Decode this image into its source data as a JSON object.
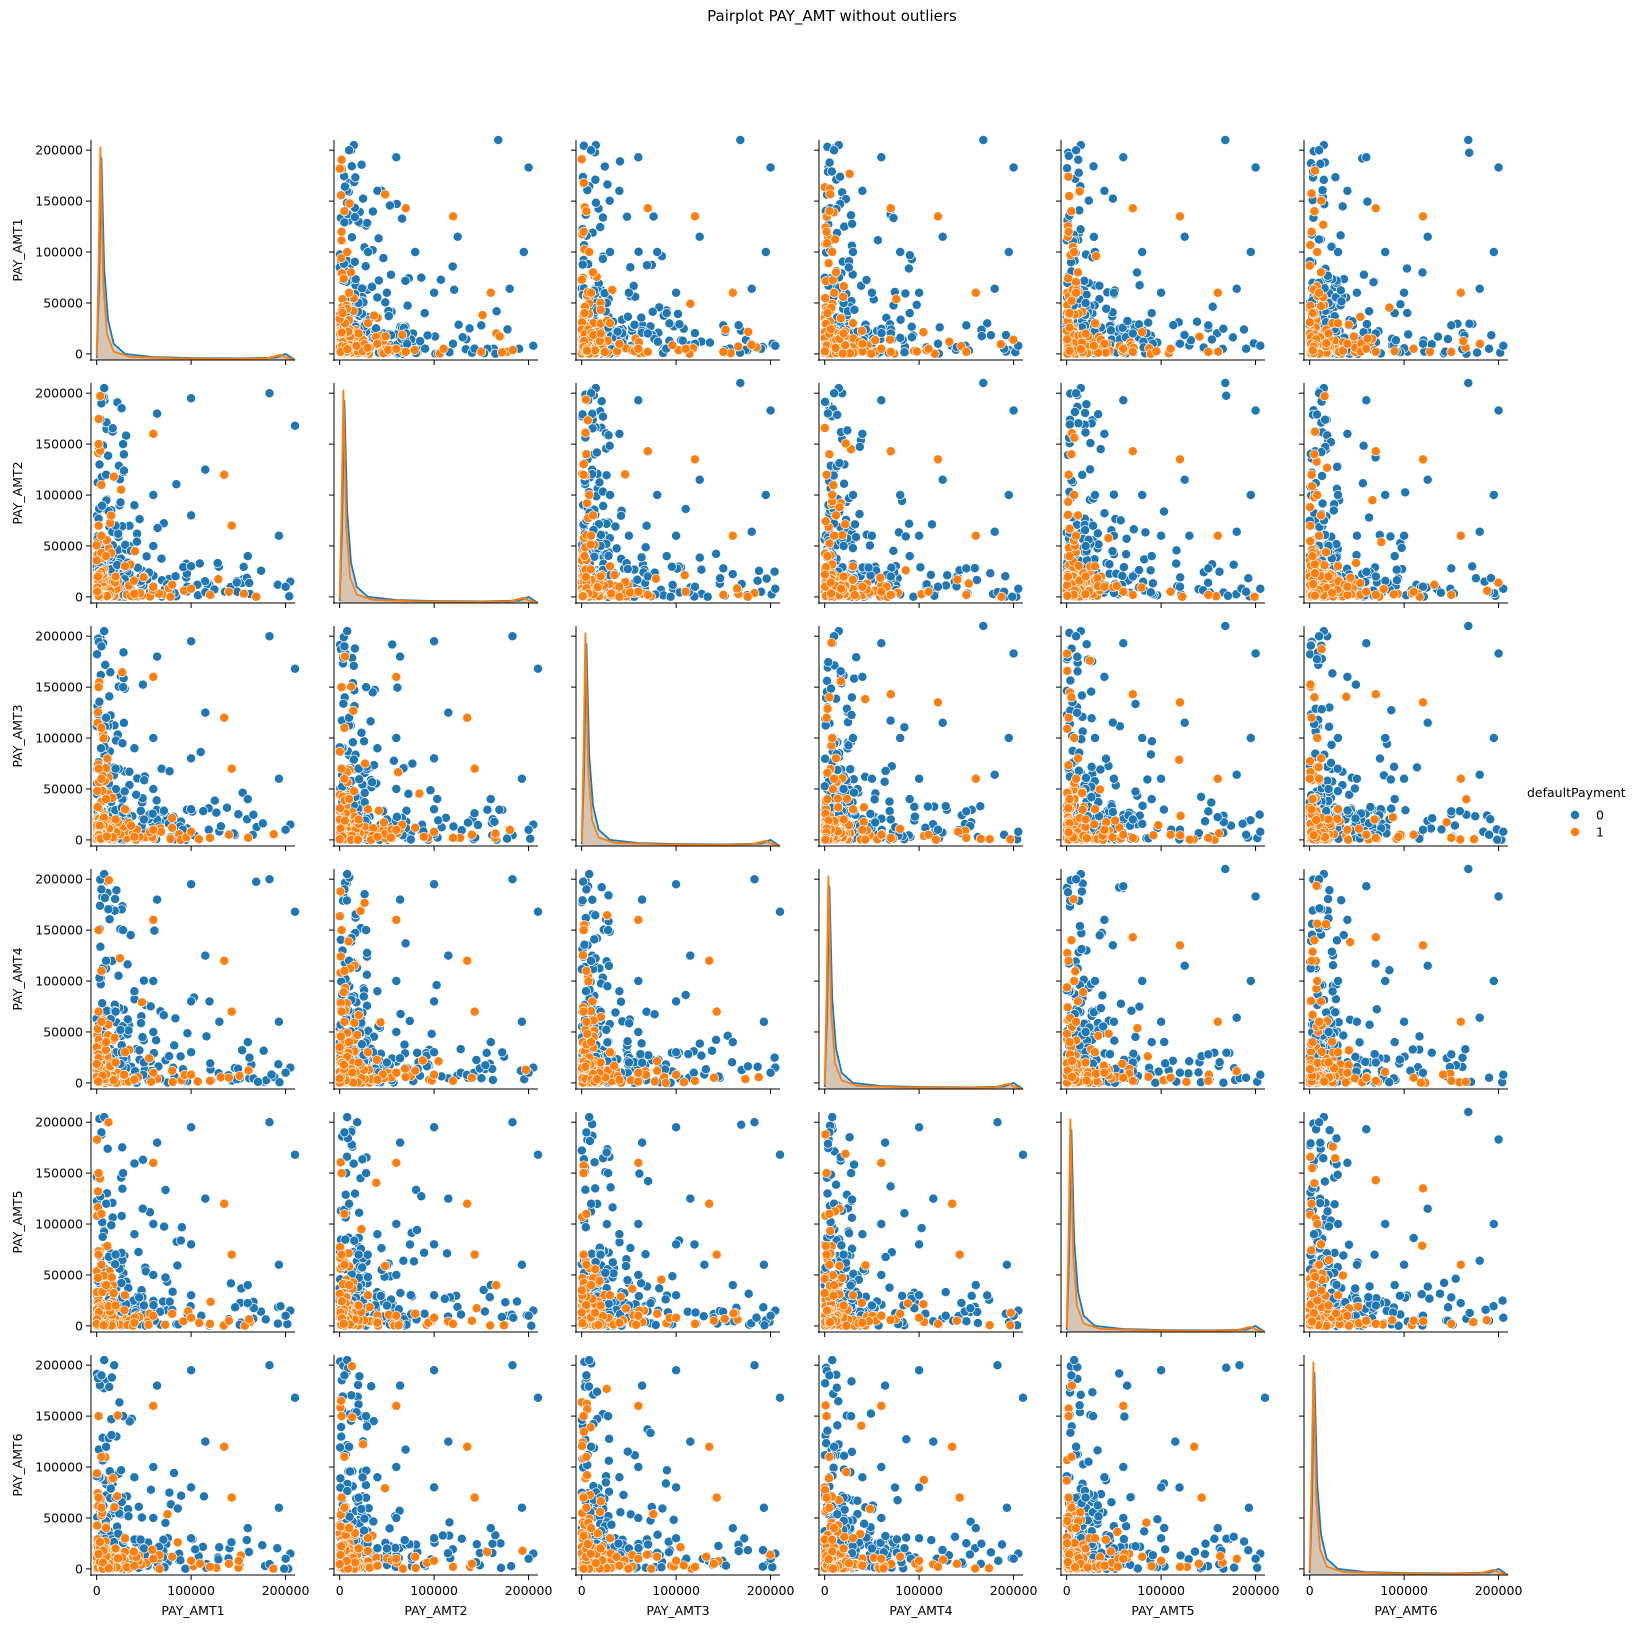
{
  "chart_data": {
    "type": "scatter",
    "title": "Pairplot PAY_AMT without outliers",
    "variables": [
      "PAY_AMT1",
      "PAY_AMT2",
      "PAY_AMT3",
      "PAY_AMT4",
      "PAY_AMT5",
      "PAY_AMT6"
    ],
    "axis_range": [
      -6000,
      210000
    ],
    "x_ticks": [
      0,
      100000,
      200000
    ],
    "y_ticks": [
      0,
      50000,
      100000,
      150000,
      200000
    ],
    "x_tick_labels": [
      "0",
      "100000",
      "200000"
    ],
    "y_tick_labels": [
      "0",
      "50000",
      "100000",
      "150000",
      "200000"
    ],
    "diagonal": "kde",
    "off_diagonal": "scatter",
    "hue": "defaultPayment",
    "legend": {
      "title": "defaultPayment",
      "placement": "right-center",
      "entries": [
        {
          "label": "0",
          "color": "#1f77b4"
        },
        {
          "label": "1",
          "color": "#ff7f0e"
        }
      ]
    },
    "kde_peaks": {
      "class_0": [
        [
          0,
          0.01
        ],
        [
          2500,
          0.35
        ],
        [
          5000,
          1.0
        ],
        [
          8000,
          0.45
        ],
        [
          12000,
          0.2
        ],
        [
          18000,
          0.08
        ],
        [
          30000,
          0.03
        ],
        [
          60000,
          0.015
        ],
        [
          100000,
          0.01
        ],
        [
          150000,
          0.008
        ],
        [
          190000,
          0.012
        ],
        [
          200000,
          0.03
        ],
        [
          205000,
          0.015
        ],
        [
          210000,
          0.0
        ]
      ],
      "class_1": [
        [
          0,
          0.02
        ],
        [
          2000,
          0.45
        ],
        [
          4000,
          1.0
        ],
        [
          7000,
          0.35
        ],
        [
          11000,
          0.12
        ],
        [
          18000,
          0.04
        ],
        [
          35000,
          0.015
        ],
        [
          80000,
          0.008
        ],
        [
          140000,
          0.005
        ],
        [
          180000,
          0.008
        ],
        [
          195000,
          0.025
        ],
        [
          200000,
          0.012
        ],
        [
          210000,
          0.0
        ]
      ]
    },
    "sample_points_class_0": [
      [
        168000,
        210000
      ],
      [
        200000,
        183000
      ],
      [
        195000,
        100000
      ],
      [
        125000,
        115000
      ],
      [
        60000,
        193000
      ],
      [
        40000,
        160000
      ],
      [
        15000,
        205000
      ],
      [
        10000,
        200000
      ],
      [
        150000,
        28000
      ],
      [
        180000,
        64000
      ],
      [
        80000,
        100000
      ],
      [
        100000,
        60000
      ],
      [
        50000,
        60000
      ],
      [
        30000,
        100000
      ],
      [
        20000,
        50000
      ],
      [
        70000,
        20000
      ],
      [
        120000,
        10000
      ],
      [
        190000,
        5000
      ],
      [
        205000,
        8000
      ],
      [
        90000,
        40000
      ]
    ],
    "sample_points_class_1": [
      [
        5000,
        140000
      ],
      [
        8000,
        100000
      ],
      [
        10000,
        60000
      ],
      [
        3000,
        40000
      ],
      [
        20000,
        20000
      ],
      [
        40000,
        10000
      ],
      [
        60000,
        5000
      ],
      [
        2000,
        120000
      ],
      [
        30000,
        30000
      ],
      [
        12000,
        80000
      ],
      [
        70000,
        2000
      ],
      [
        110000,
        5000
      ],
      [
        150000,
        2000
      ],
      [
        160000,
        60000
      ],
      [
        120000,
        135000
      ],
      [
        70000,
        143000
      ]
    ]
  }
}
